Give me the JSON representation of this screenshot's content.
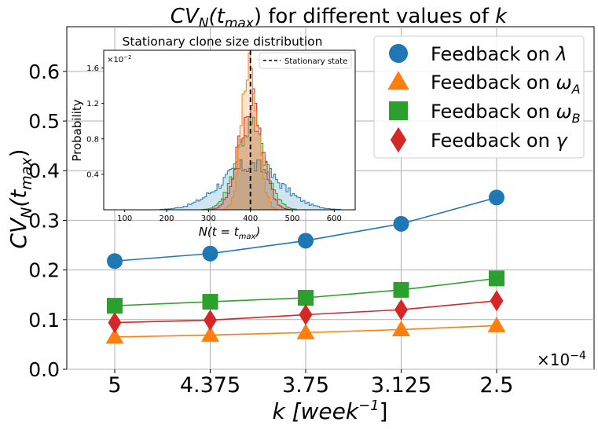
{
  "chart_data": [
    {
      "type": "line",
      "title_main": "CV",
      "title_sub": "N",
      "title_arg": "(t",
      "title_arg_sub": "max",
      "title_rest": ") for different values of ",
      "title_k": "k",
      "xlabel_k": "k",
      "xlabel_unit": "[week",
      "xlabel_exp": "−1",
      "xlabel_close": "]",
      "ylabel_main": "CV",
      "ylabel_sub": "N",
      "ylabel_arg": "(t",
      "ylabel_arg_sub": "max",
      "ylabel_close": ")",
      "x_multiplier_base": "×10",
      "x_multiplier_exp": "−4",
      "categories": [
        "5",
        "4.375",
        "3.75",
        "3.125",
        "2.5"
      ],
      "yticks": [
        "0.0",
        "0.1",
        "0.2",
        "0.3",
        "0.4",
        "0.5",
        "0.6"
      ],
      "ylim": [
        0.0,
        0.69
      ],
      "grid": true,
      "legend_position": "top-right",
      "colors": {
        "lambda": "#1f77b4",
        "omegaA": "#ff7f0e",
        "omegaB": "#2ca02c",
        "gamma": "#d62728",
        "grid": "#b0b0b0"
      },
      "series": [
        {
          "key": "lambda",
          "legend_text": "Feedback on ",
          "legend_symbol": "λ",
          "legend_sub": "",
          "marker": "circle",
          "values": [
            0.218,
            0.233,
            0.259,
            0.293,
            0.346
          ]
        },
        {
          "key": "omegaA",
          "legend_text": "Feedback on ",
          "legend_symbol": "ω",
          "legend_sub": "A",
          "marker": "triangle",
          "values": [
            0.065,
            0.069,
            0.074,
            0.08,
            0.088
          ]
        },
        {
          "key": "omegaB",
          "legend_text": "Feedback on ",
          "legend_symbol": "ω",
          "legend_sub": "B",
          "marker": "square",
          "values": [
            0.128,
            0.136,
            0.144,
            0.16,
            0.183
          ]
        },
        {
          "key": "gamma",
          "legend_text": "Feedback on ",
          "legend_symbol": "γ",
          "legend_sub": "",
          "marker": "diamond",
          "values": [
            0.094,
            0.099,
            0.11,
            0.12,
            0.138
          ]
        }
      ]
    },
    {
      "type": "area",
      "title": "Stationary clone size distribution",
      "xlabel_main": "N(t = t",
      "xlabel_sub": "max",
      "xlabel_close": ")",
      "ylabel": "Probability",
      "y_multiplier_base": "×10",
      "y_multiplier_exp": "−2",
      "xticks": [
        "100",
        "200",
        "300",
        "400",
        "500",
        "600"
      ],
      "xtick_values": [
        100,
        200,
        300,
        400,
        500,
        600
      ],
      "yticks": [
        "0.4",
        "0.8",
        "1.2",
        "1.6"
      ],
      "ytick_values": [
        0.4,
        0.8,
        1.2,
        1.6
      ],
      "xlim": [
        50,
        650
      ],
      "ylim": [
        0,
        1.8
      ],
      "vline_x": 400,
      "legend_label": "Stationary state",
      "legend_position": "top-right",
      "series": [
        {
          "key": "lambda",
          "color": "#1f77b4",
          "mean": 400,
          "sd": 70,
          "peak": 0.5
        },
        {
          "key": "omegaB",
          "color": "#2ca02c",
          "mean": 400,
          "sd": 34,
          "peak": 0.95
        },
        {
          "key": "gamma",
          "color": "#d62728",
          "mean": 400,
          "sd": 28,
          "peak": 1.2
        },
        {
          "key": "omegaA",
          "color": "#ff7f0e",
          "mean": 400,
          "sd": 19,
          "peak": 1.7
        }
      ]
    }
  ]
}
